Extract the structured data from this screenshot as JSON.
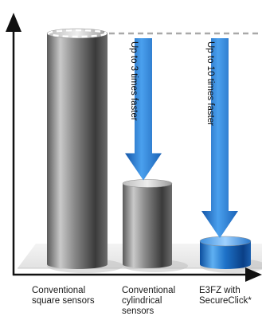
{
  "chart_data": {
    "type": "bar",
    "categories": [
      "Conventional\nsquare sensors",
      "Conventional\ncylindrical\nsensors",
      "E3FZ with\nSecureClick*"
    ],
    "values": [
      100,
      35,
      10
    ],
    "ylim": [
      0,
      100
    ],
    "grid": false,
    "legend": "none",
    "annotations": [
      {
        "text": "Up to 3 times faster",
        "from": 0,
        "to": 1
      },
      {
        "text": "Up to 10 times faster",
        "from": 0,
        "to": 2
      }
    ],
    "colors": {
      "conventional_bar": "#7a7a7a",
      "highlight_bar": "#1e6fc4",
      "arrow": "#2a7ad2",
      "axis": "#111111",
      "reference_line": "#a9a9a9"
    }
  }
}
